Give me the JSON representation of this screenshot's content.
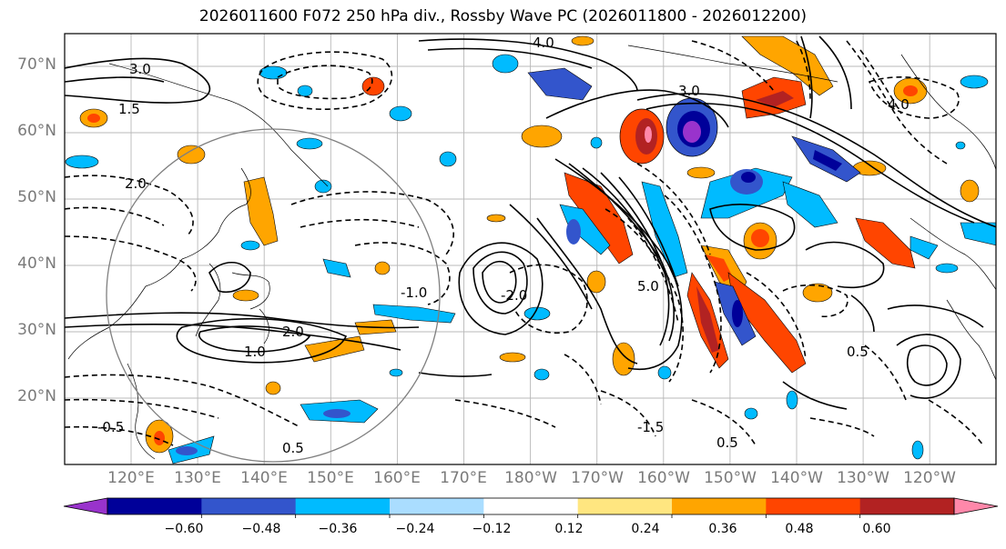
{
  "title": "2026011600 F072 250 hPa div., Rossby Wave PC (2026011800 - 2026012200)",
  "map": {
    "lat_labels": [
      "70°N",
      "60°N",
      "50°N",
      "40°N",
      "30°N",
      "20°N"
    ],
    "lon_labels": [
      "120°E",
      "130°E",
      "140°E",
      "150°E",
      "160°E",
      "170°E",
      "180°W",
      "170°W",
      "160°W",
      "150°W",
      "140°W",
      "130°W",
      "120°W"
    ],
    "contour_labels": [
      "4.0",
      "3.0",
      "2.0",
      "1.5",
      "1.0",
      "0.5",
      "-0.5",
      "-1.0",
      "-1.5",
      "-2.0",
      "5.0",
      "0.5",
      "3.0",
      "2.0",
      "4.0",
      "0.5"
    ]
  },
  "colorbar": {
    "tick_labels": [
      "−0.60",
      "−0.48",
      "−0.36",
      "−0.24",
      "−0.12",
      "0.12",
      "0.24",
      "0.36",
      "0.48",
      "0.60"
    ],
    "colors": [
      "#9933cc",
      "#000099",
      "#3355cc",
      "#00bbff",
      "#aaddff",
      "#ffffff",
      "#ffe680",
      "#ffa500",
      "#ff4500",
      "#b22222",
      "#ff88aa"
    ]
  }
}
